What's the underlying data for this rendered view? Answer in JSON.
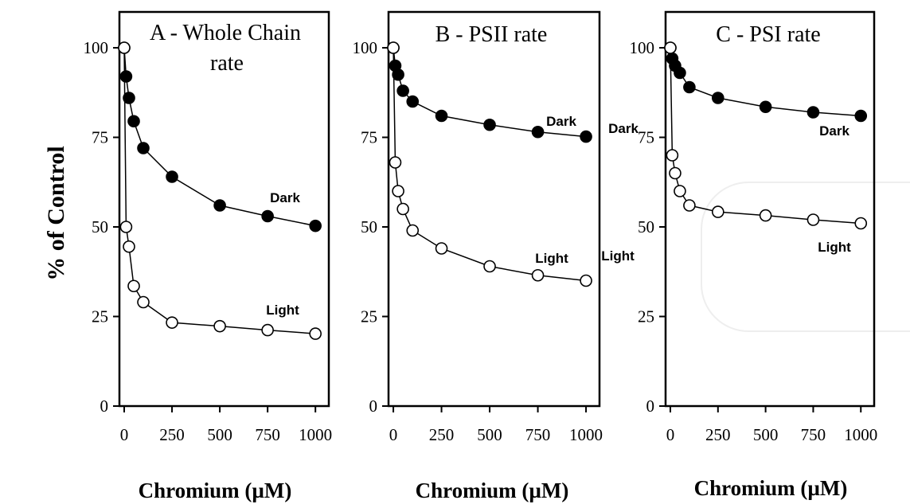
{
  "figure": {
    "y_label": "% of Control",
    "x_label": "Chromium (µM)"
  },
  "chart_data": [
    {
      "type": "line",
      "panel": "A",
      "title": "A  - Whole Chain",
      "title_line2": "rate",
      "xlabel": "Chromium (µM)",
      "ylabel": "% of Control",
      "xlim": [
        -25,
        1070
      ],
      "ylim": [
        0,
        110
      ],
      "x_ticks": [
        0,
        250,
        500,
        750,
        1000
      ],
      "y_ticks": [
        0,
        25,
        50,
        75,
        100
      ],
      "x": [
        0,
        10,
        25,
        50,
        100,
        250,
        500,
        750,
        1000
      ],
      "series": [
        {
          "name": "Dark",
          "marker": "filled",
          "values": [
            100,
            92,
            86,
            79.5,
            72,
            64,
            56,
            53,
            50.3
          ]
        },
        {
          "name": "Light",
          "marker": "open",
          "values": [
            100,
            50,
            44.5,
            33.5,
            29,
            23.3,
            22.3,
            21.2,
            20.2
          ]
        }
      ],
      "series_label_positions": [
        "right-below-curve",
        "right-above-curve"
      ]
    },
    {
      "type": "line",
      "panel": "B",
      "title": "B  -   PSII rate",
      "title_line2": "",
      "xlabel": "Chromium (µM)",
      "ylabel": "% of Control",
      "xlim": [
        -25,
        1070
      ],
      "ylim": [
        0,
        110
      ],
      "x_ticks": [
        0,
        250,
        500,
        750,
        1000
      ],
      "y_ticks": [
        0,
        25,
        50,
        75,
        100
      ],
      "x": [
        0,
        10,
        25,
        50,
        100,
        250,
        500,
        750,
        1000
      ],
      "series": [
        {
          "name": "Dark",
          "marker": "filled",
          "values": [
            100,
            95,
            92.5,
            88,
            85,
            81,
            78.5,
            76.5,
            75.2
          ]
        },
        {
          "name": "Light",
          "marker": "open",
          "values": [
            100,
            68,
            60,
            55,
            49,
            44,
            39,
            36.5,
            35
          ]
        }
      ]
    },
    {
      "type": "line",
      "panel": "C",
      "title": "C   -   PSI rate",
      "title_line2": "",
      "xlabel": "Chromium (µM)",
      "ylabel": "% of Control",
      "xlim": [
        -25,
        1070
      ],
      "ylim": [
        0,
        110
      ],
      "x_ticks": [
        0,
        250,
        500,
        750,
        1000
      ],
      "y_ticks": [
        0,
        25,
        50,
        75,
        100
      ],
      "x": [
        0,
        10,
        25,
        50,
        100,
        250,
        500,
        750,
        1000
      ],
      "series": [
        {
          "name": "Dark",
          "marker": "filled",
          "values": [
            100,
            97,
            95,
            93,
            89,
            86,
            83.5,
            82,
            81
          ]
        },
        {
          "name": "Light",
          "marker": "open",
          "values": [
            100,
            70,
            65,
            60,
            56,
            54.2,
            53.2,
            52,
            51
          ]
        }
      ],
      "side_labels": [
        "Dark",
        "Light"
      ]
    }
  ]
}
